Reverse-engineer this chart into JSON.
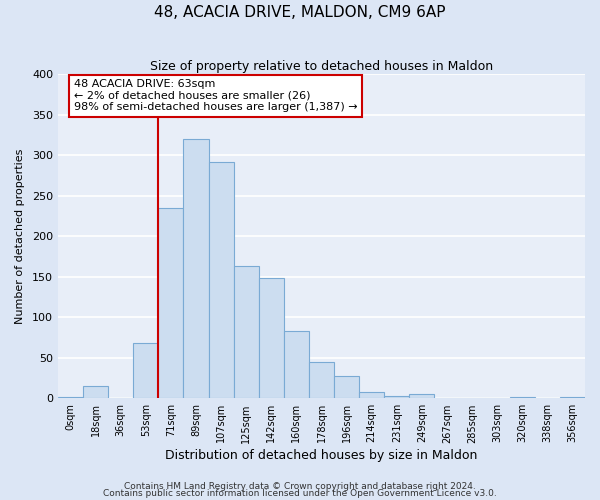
{
  "title": "48, ACACIA DRIVE, MALDON, CM9 6AP",
  "subtitle": "Size of property relative to detached houses in Maldon",
  "xlabel": "Distribution of detached houses by size in Maldon",
  "ylabel": "Number of detached properties",
  "bin_labels": [
    "0sqm",
    "18sqm",
    "36sqm",
    "53sqm",
    "71sqm",
    "89sqm",
    "107sqm",
    "125sqm",
    "142sqm",
    "160sqm",
    "178sqm",
    "196sqm",
    "214sqm",
    "231sqm",
    "249sqm",
    "267sqm",
    "285sqm",
    "303sqm",
    "320sqm",
    "338sqm",
    "356sqm"
  ],
  "bar_values": [
    2,
    15,
    0,
    68,
    235,
    320,
    292,
    163,
    148,
    83,
    45,
    28,
    8,
    3,
    5,
    1,
    0,
    0,
    2,
    0,
    2
  ],
  "bar_color": "#ccddf0",
  "bar_edge_color": "#7aaad4",
  "background_color": "#e8eef8",
  "grid_color": "#ffffff",
  "vline_x": 4.0,
  "vline_color": "#cc0000",
  "annotation_text": "48 ACACIA DRIVE: 63sqm\n← 2% of detached houses are smaller (26)\n98% of semi-detached houses are larger (1,387) →",
  "annotation_box_color": "#ffffff",
  "annotation_box_edge_color": "#cc0000",
  "ylim": [
    0,
    400
  ],
  "yticks": [
    0,
    50,
    100,
    150,
    200,
    250,
    300,
    350,
    400
  ],
  "footnote1": "Contains HM Land Registry data © Crown copyright and database right 2024.",
  "footnote2": "Contains public sector information licensed under the Open Government Licence v3.0."
}
